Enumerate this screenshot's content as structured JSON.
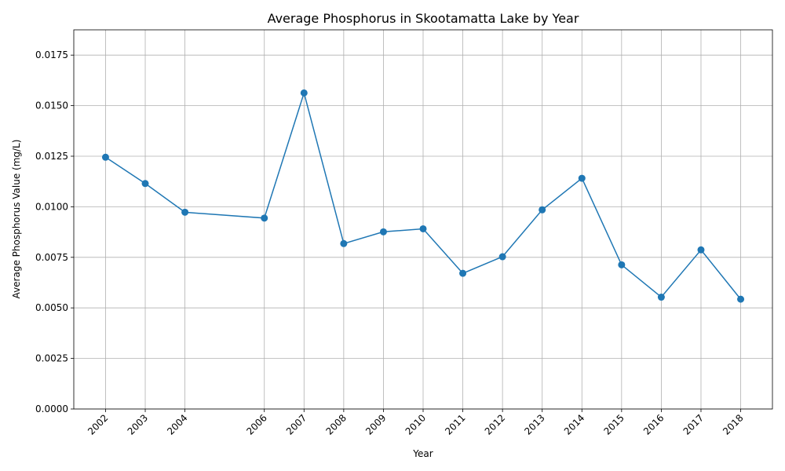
{
  "chart_data": {
    "type": "line",
    "title": "Average Phosphorus in Skootamatta Lake by Year",
    "xlabel": "Year",
    "ylabel": "Average Phosphorus Value (mg/L)",
    "x": [
      2002,
      2003,
      2004,
      2006,
      2007,
      2008,
      2009,
      2010,
      2011,
      2012,
      2013,
      2014,
      2015,
      2016,
      2017,
      2018
    ],
    "x_tick_labels": [
      "2002",
      "2003",
      "2004",
      "2006",
      "2007",
      "2008",
      "2009",
      "2010",
      "2011",
      "2012",
      "2013",
      "2014",
      "2015",
      "2016",
      "2017",
      "2018"
    ],
    "series": [
      {
        "values": [
          0.01245,
          0.01115,
          0.00973,
          0.00944,
          0.01563,
          0.00818,
          0.00876,
          0.00891,
          0.00671,
          0.00753,
          0.00985,
          0.01141,
          0.00713,
          0.00553,
          0.00787,
          0.00543
        ],
        "color": "#1f77b4",
        "marker": "circle"
      }
    ],
    "xlim": [
      2001.2,
      2018.8
    ],
    "ylim": [
      0,
      0.01875
    ],
    "y_ticks": [
      0,
      0.0025,
      0.005,
      0.0075,
      0.01,
      0.0125,
      0.015,
      0.0175
    ],
    "y_tick_labels": [
      "0.0000",
      "0.0025",
      "0.0050",
      "0.0075",
      "0.0100",
      "0.0125",
      "0.0150",
      "0.0175"
    ],
    "grid": true,
    "legend": "none"
  }
}
